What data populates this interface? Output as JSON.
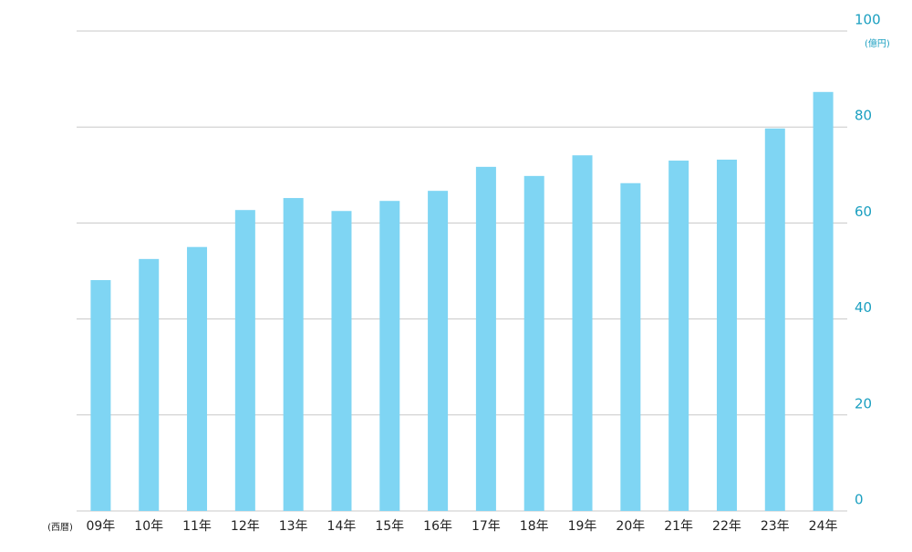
{
  "chart_data": {
    "type": "bar",
    "y_unit": "(億円)",
    "x_unit": "(西暦)",
    "categories": [
      "09年",
      "10年",
      "11年",
      "12年",
      "13年",
      "14年",
      "15年",
      "16年",
      "17年",
      "18年",
      "19年",
      "20年",
      "21年",
      "22年",
      "23年",
      "24年"
    ],
    "values": [
      48.1,
      52.5,
      55,
      62.7,
      65.2,
      62.5,
      64.6,
      66.7,
      71.7,
      69.8,
      74.1,
      68.3,
      73,
      73.2,
      79.7,
      87.3
    ],
    "color": "#7fd5f3",
    "ylim": [
      0,
      100
    ],
    "yticks": [
      0,
      20,
      40,
      60,
      80,
      100
    ],
    "grid": true,
    "y_axis_side": "right"
  }
}
